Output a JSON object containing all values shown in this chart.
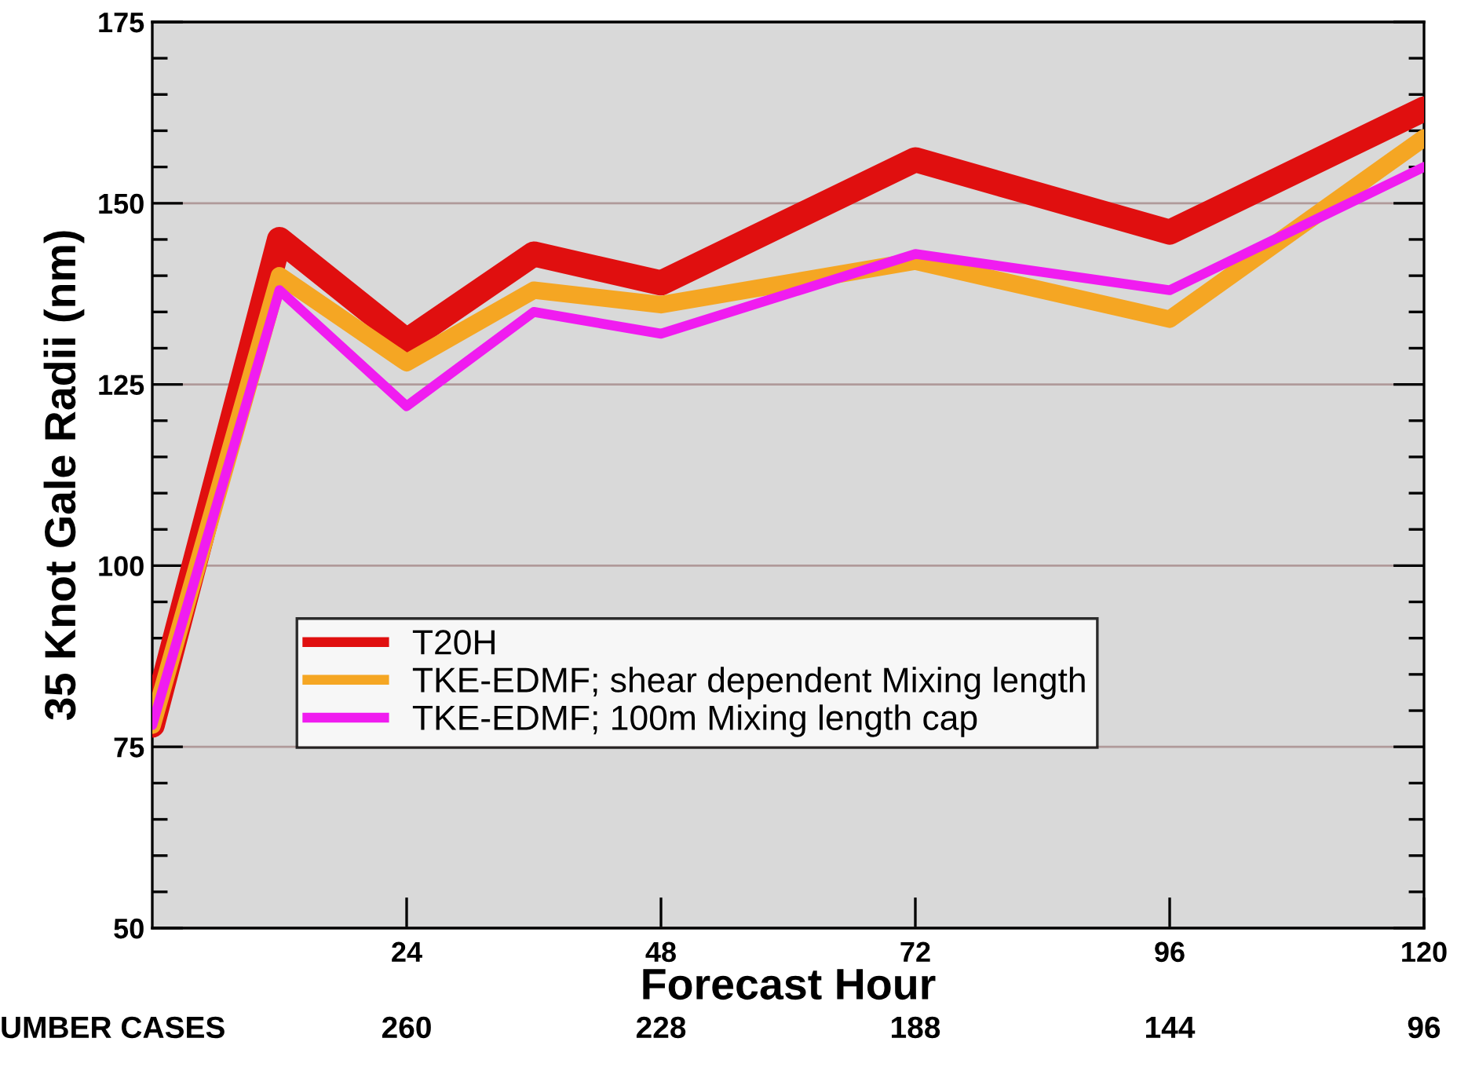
{
  "chart_data": {
    "type": "line",
    "xlabel": "Forecast Hour",
    "ylabel": "35 Knot Gale Radii (nm)",
    "x": [
      0,
      12,
      24,
      36,
      48,
      72,
      96,
      120
    ],
    "series": [
      {
        "name": "T20H",
        "color": "#e00f0f",
        "values": [
          78,
          145,
          131,
          143,
          139,
          156,
          146,
          163
        ]
      },
      {
        "name": "TKE-EDMF; shear dependent Mixing length",
        "color": "#f5a623",
        "values": [
          78,
          140,
          128,
          138,
          136,
          142,
          134,
          159
        ]
      },
      {
        "name": "TKE-EDMF; 100m Mixing length cap",
        "color": "#f01cf0",
        "values": [
          78,
          138,
          122,
          135,
          132,
          143,
          138,
          155
        ]
      }
    ],
    "xlim": [
      0,
      120
    ],
    "xticks": [
      24,
      48,
      72,
      96,
      120
    ],
    "ylim": [
      50,
      175
    ],
    "yticks": [
      50,
      75,
      100,
      125,
      150,
      175
    ],
    "grid": "y",
    "legend": "lower left",
    "line_style": "solid",
    "marker": "none",
    "annotations": [
      "UMBER CASES",
      "260",
      "228",
      "188",
      "144",
      "96"
    ]
  }
}
